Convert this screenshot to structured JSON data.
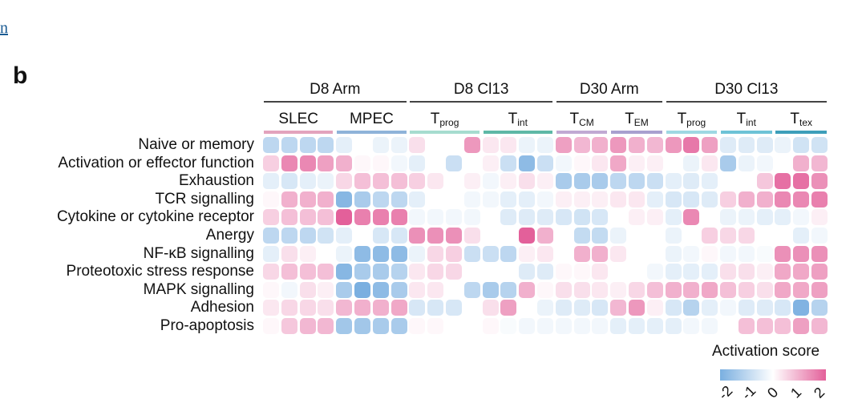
{
  "page": {
    "top_link": "n",
    "panel_letter": "b"
  },
  "chart_data": {
    "type": "heatmap",
    "title": "",
    "rows": [
      "Naive or memory",
      "Activation or effector function",
      "Exhaustion",
      "TCR signalling",
      "Cytokine or cytokine receptor",
      "Anergy",
      "NF-κB signalling",
      "Proteotoxic stress response",
      "MAPK signalling",
      "Adhesion",
      "Pro-apoptosis"
    ],
    "groups": [
      {
        "name": "D8 Arm",
        "subgroups": [
          0,
          1
        ]
      },
      {
        "name": "D8 Cl13",
        "subgroups": [
          2,
          3
        ]
      },
      {
        "name": "D30 Arm",
        "subgroups": [
          4,
          5
        ]
      },
      {
        "name": "D30 Cl13",
        "subgroups": [
          6,
          7,
          8
        ]
      }
    ],
    "subgroups": [
      {
        "label": "SLEC",
        "sub": "",
        "color": "#e3a3bd",
        "columns": 4
      },
      {
        "label": "MPEC",
        "sub": "",
        "color": "#8fb3d9",
        "columns": 4
      },
      {
        "label": "T",
        "sub": "prog",
        "color": "#a6dccf",
        "columns": 4
      },
      {
        "label": "T",
        "sub": "int",
        "color": "#5eb8a6",
        "columns": 4
      },
      {
        "label": "T",
        "sub": "CM",
        "color": "#c1a9d3",
        "columns": 3
      },
      {
        "label": "T",
        "sub": "EM",
        "color": "#a8a0cf",
        "columns": 3
      },
      {
        "label": "T",
        "sub": "prog",
        "color": "#9fd8e3",
        "columns": 3
      },
      {
        "label": "T",
        "sub": "int",
        "color": "#6ec3d6",
        "columns": 3
      },
      {
        "label": "T",
        "sub": "tex",
        "color": "#3d9fba",
        "columns": 3
      }
    ],
    "values": [
      [
        -1.0,
        -1.0,
        -1.0,
        -1.0,
        -0.4,
        0,
        -0.3,
        -0.3,
        0.4,
        0,
        0,
        1.3,
        0.3,
        0.3,
        -0.3,
        -0.3,
        1.2,
        0.9,
        1.0,
        1.3,
        1.0,
        0.9,
        1.3,
        1.7,
        1.2,
        -0.5,
        -0.5,
        -0.5,
        -0.3,
        -0.7,
        -0.7
      ],
      [
        0.6,
        1.5,
        1.5,
        1.2,
        1.0,
        0.1,
        0.1,
        -0.2,
        -0.4,
        0,
        -0.8,
        0,
        0.2,
        -0.8,
        -1.7,
        -0.8,
        -0.2,
        0.1,
        0.3,
        1.1,
        0.2,
        0.2,
        0,
        -0.3,
        0.3,
        -1.3,
        -0.3,
        -0.2,
        0,
        1.0,
        0.9
      ],
      [
        -0.4,
        -0.6,
        -0.4,
        -0.3,
        0.5,
        0.8,
        0.8,
        0.8,
        0.6,
        0.3,
        0,
        0.2,
        -0.2,
        0.2,
        0.4,
        0.2,
        -1.3,
        -1.3,
        -1.3,
        -1.0,
        -1.0,
        -0.8,
        -0.4,
        -0.5,
        -0.4,
        0,
        0,
        0.7,
        1.8,
        1.8,
        1.4
      ],
      [
        0.1,
        1.0,
        1.0,
        1.0,
        -1.8,
        -1.3,
        -1.0,
        -1.0,
        -0.4,
        0,
        0,
        -0.2,
        -0.2,
        -0.4,
        -0.4,
        -0.2,
        0.2,
        0.2,
        0.2,
        0.3,
        0.3,
        -0.4,
        -0.6,
        -0.6,
        -0.5,
        0.6,
        1.0,
        1.0,
        1.5,
        1.5,
        1.6
      ],
      [
        0.6,
        0.8,
        0.8,
        0.8,
        2.0,
        1.6,
        1.6,
        1.6,
        -0.2,
        -0.2,
        -0.2,
        -0.2,
        0,
        -0.5,
        -0.5,
        -0.5,
        -0.6,
        -0.7,
        -0.6,
        0,
        0.2,
        0.2,
        -0.4,
        1.5,
        0,
        -0.3,
        -0.3,
        -0.4,
        -0.4,
        -0.2,
        0.2
      ],
      [
        -1.0,
        -1.0,
        -1.0,
        -0.7,
        -0.4,
        0,
        -0.6,
        -0.6,
        1.4,
        1.4,
        1.4,
        0.4,
        0,
        0,
        2.0,
        1.0,
        0,
        -0.9,
        -0.9,
        -0.3,
        0,
        0,
        -0.3,
        0,
        0.6,
        0.5,
        0.5,
        0,
        0,
        -0.4,
        -0.2
      ],
      [
        -0.4,
        0.4,
        0.2,
        0,
        -0.3,
        -1.7,
        -1.7,
        -1.7,
        -0.3,
        0.5,
        0.6,
        -0.8,
        -0.8,
        -1.0,
        0.2,
        0.3,
        0,
        1.0,
        1.0,
        0.3,
        0,
        0,
        -0.3,
        -0.2,
        0.1,
        -0.2,
        -0.2,
        -0.1,
        1.4,
        1.4,
        1.4
      ],
      [
        0.5,
        0.8,
        0.8,
        0.8,
        -1.8,
        -1.3,
        -1.3,
        -1.1,
        0.3,
        0.5,
        0.5,
        0,
        0,
        0,
        -0.5,
        -0.5,
        0.1,
        0.1,
        0.3,
        0,
        0,
        -0.2,
        -0.4,
        -0.4,
        -0.4,
        0.4,
        0.4,
        0.2,
        1.1,
        1.1,
        1.2
      ],
      [
        0.1,
        -0.2,
        0.4,
        0.2,
        -1.3,
        -2.1,
        -1.7,
        -1.3,
        0.3,
        0.3,
        0,
        -1.0,
        -1.3,
        -1.1,
        1.0,
        0.1,
        0.4,
        0.4,
        0.3,
        0.2,
        0.5,
        0.8,
        1.0,
        1.0,
        1.1,
        0.8,
        0.6,
        0.4,
        1.1,
        1.1,
        1.2
      ],
      [
        0.3,
        0.5,
        0.5,
        0.4,
        0.9,
        1.0,
        1.0,
        1.1,
        -0.6,
        -0.6,
        -0.6,
        0,
        0.4,
        1.2,
        0,
        -0.3,
        -0.5,
        -0.5,
        -0.6,
        0.9,
        1.3,
        0.2,
        -0.6,
        -1.1,
        -0.4,
        -0.2,
        -0.5,
        -0.5,
        -0.6,
        -1.9,
        -1.1
      ],
      [
        0.1,
        0.7,
        0.9,
        0.9,
        -1.4,
        -1.4,
        -1.3,
        -1.3,
        0.1,
        0.1,
        0,
        0,
        0.1,
        -0.1,
        -0.2,
        -0.2,
        -0.2,
        -0.2,
        -0.2,
        -0.4,
        -0.4,
        -0.4,
        -0.4,
        -0.2,
        -0.2,
        0,
        0.8,
        0.8,
        0.8,
        1.2,
        0.9
      ]
    ],
    "legend": {
      "title": "Activation score",
      "range": [
        -2,
        2
      ],
      "ticks": [
        "-2",
        "-1",
        "0",
        "1",
        "2"
      ]
    },
    "colors": {
      "negative": "#7aafe0",
      "zero": "#ffffff",
      "positive": "#e3609a"
    }
  }
}
